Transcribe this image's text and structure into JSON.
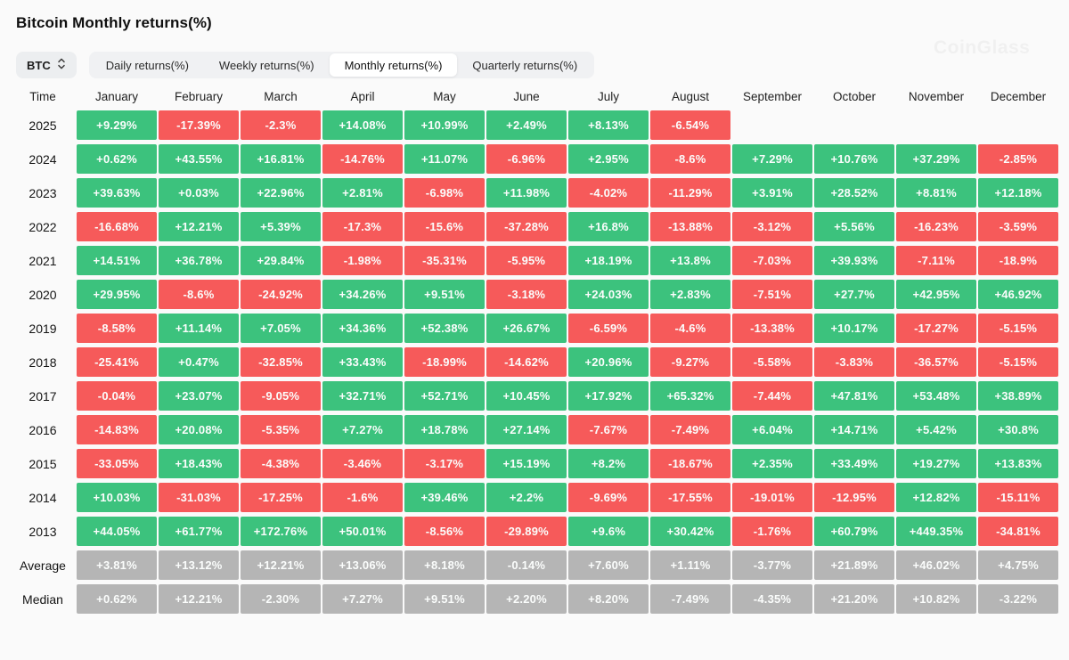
{
  "page": {
    "title": "Bitcoin Monthly returns(%)",
    "watermark": "CoinGlass"
  },
  "controls": {
    "symbol_selector": {
      "label": "BTC"
    },
    "tabs": [
      {
        "label": "Daily returns(%)",
        "active": false
      },
      {
        "label": "Weekly returns(%)",
        "active": false
      },
      {
        "label": "Monthly returns(%)",
        "active": true
      },
      {
        "label": "Quarterly returns(%)",
        "active": false
      }
    ]
  },
  "colors": {
    "positive": "#3cc27d",
    "negative": "#f65a5a",
    "neutral": "#b5b5b5"
  },
  "chart_data": {
    "type": "heatmap",
    "title": "Bitcoin Monthly returns(%)",
    "row_header": "Time",
    "columns": [
      "January",
      "February",
      "March",
      "April",
      "May",
      "June",
      "July",
      "August",
      "September",
      "October",
      "November",
      "December"
    ],
    "rows": [
      {
        "label": "2025",
        "kind": "year",
        "values": [
          "+9.29%",
          "-17.39%",
          "-2.3%",
          "+14.08%",
          "+10.99%",
          "+2.49%",
          "+8.13%",
          "-6.54%",
          null,
          null,
          null,
          null
        ]
      },
      {
        "label": "2024",
        "kind": "year",
        "values": [
          "+0.62%",
          "+43.55%",
          "+16.81%",
          "-14.76%",
          "+11.07%",
          "-6.96%",
          "+2.95%",
          "-8.6%",
          "+7.29%",
          "+10.76%",
          "+37.29%",
          "-2.85%"
        ]
      },
      {
        "label": "2023",
        "kind": "year",
        "values": [
          "+39.63%",
          "+0.03%",
          "+22.96%",
          "+2.81%",
          "-6.98%",
          "+11.98%",
          "-4.02%",
          "-11.29%",
          "+3.91%",
          "+28.52%",
          "+8.81%",
          "+12.18%"
        ]
      },
      {
        "label": "2022",
        "kind": "year",
        "values": [
          "-16.68%",
          "+12.21%",
          "+5.39%",
          "-17.3%",
          "-15.6%",
          "-37.28%",
          "+16.8%",
          "-13.88%",
          "-3.12%",
          "+5.56%",
          "-16.23%",
          "-3.59%"
        ]
      },
      {
        "label": "2021",
        "kind": "year",
        "values": [
          "+14.51%",
          "+36.78%",
          "+29.84%",
          "-1.98%",
          "-35.31%",
          "-5.95%",
          "+18.19%",
          "+13.8%",
          "-7.03%",
          "+39.93%",
          "-7.11%",
          "-18.9%"
        ]
      },
      {
        "label": "2020",
        "kind": "year",
        "values": [
          "+29.95%",
          "-8.6%",
          "-24.92%",
          "+34.26%",
          "+9.51%",
          "-3.18%",
          "+24.03%",
          "+2.83%",
          "-7.51%",
          "+27.7%",
          "+42.95%",
          "+46.92%"
        ]
      },
      {
        "label": "2019",
        "kind": "year",
        "values": [
          "-8.58%",
          "+11.14%",
          "+7.05%",
          "+34.36%",
          "+52.38%",
          "+26.67%",
          "-6.59%",
          "-4.6%",
          "-13.38%",
          "+10.17%",
          "-17.27%",
          "-5.15%"
        ]
      },
      {
        "label": "2018",
        "kind": "year",
        "values": [
          "-25.41%",
          "+0.47%",
          "-32.85%",
          "+33.43%",
          "-18.99%",
          "-14.62%",
          "+20.96%",
          "-9.27%",
          "-5.58%",
          "-3.83%",
          "-36.57%",
          "-5.15%"
        ]
      },
      {
        "label": "2017",
        "kind": "year",
        "values": [
          "-0.04%",
          "+23.07%",
          "-9.05%",
          "+32.71%",
          "+52.71%",
          "+10.45%",
          "+17.92%",
          "+65.32%",
          "-7.44%",
          "+47.81%",
          "+53.48%",
          "+38.89%"
        ]
      },
      {
        "label": "2016",
        "kind": "year",
        "values": [
          "-14.83%",
          "+20.08%",
          "-5.35%",
          "+7.27%",
          "+18.78%",
          "+27.14%",
          "-7.67%",
          "-7.49%",
          "+6.04%",
          "+14.71%",
          "+5.42%",
          "+30.8%"
        ]
      },
      {
        "label": "2015",
        "kind": "year",
        "values": [
          "-33.05%",
          "+18.43%",
          "-4.38%",
          "-3.46%",
          "-3.17%",
          "+15.19%",
          "+8.2%",
          "-18.67%",
          "+2.35%",
          "+33.49%",
          "+19.27%",
          "+13.83%"
        ]
      },
      {
        "label": "2014",
        "kind": "year",
        "values": [
          "+10.03%",
          "-31.03%",
          "-17.25%",
          "-1.6%",
          "+39.46%",
          "+2.2%",
          "-9.69%",
          "-17.55%",
          "-19.01%",
          "-12.95%",
          "+12.82%",
          "-15.11%"
        ]
      },
      {
        "label": "2013",
        "kind": "year",
        "values": [
          "+44.05%",
          "+61.77%",
          "+172.76%",
          "+50.01%",
          "-8.56%",
          "-29.89%",
          "+9.6%",
          "+30.42%",
          "-1.76%",
          "+60.79%",
          "+449.35%",
          "-34.81%"
        ]
      },
      {
        "label": "Average",
        "kind": "aggregate",
        "values": [
          "+3.81%",
          "+13.12%",
          "+12.21%",
          "+13.06%",
          "+8.18%",
          "-0.14%",
          "+7.60%",
          "+1.11%",
          "-3.77%",
          "+21.89%",
          "+46.02%",
          "+4.75%"
        ]
      },
      {
        "label": "Median",
        "kind": "aggregate",
        "values": [
          "+0.62%",
          "+12.21%",
          "-2.30%",
          "+7.27%",
          "+9.51%",
          "+2.20%",
          "+8.20%",
          "-7.49%",
          "-4.35%",
          "+21.20%",
          "+10.82%",
          "-3.22%"
        ]
      }
    ]
  }
}
